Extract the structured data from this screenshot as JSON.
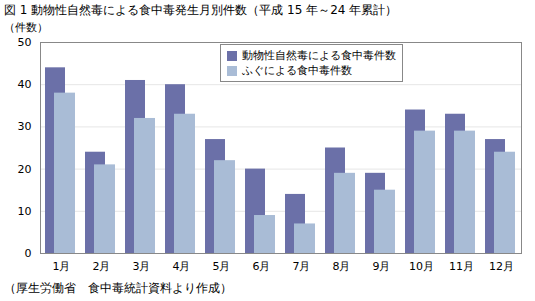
{
  "chart_data": {
    "type": "bar",
    "title": "図 1 動物性自然毒による食中毒発生月別件数（平成 15 年～24 年累計）",
    "caption": "（厚生労働省　食中毒統計資料より作成）",
    "y_label": "（件数）",
    "categories": [
      "1月",
      "2月",
      "3月",
      "4月",
      "5月",
      "6月",
      "7月",
      "8月",
      "9月",
      "10月",
      "11月",
      "12月"
    ],
    "series": [
      {
        "name": "動物性自然毒による食中毒件数",
        "color": "#6b70a8",
        "values": [
          44,
          24,
          41,
          40,
          27,
          20,
          14,
          25,
          19,
          34,
          33,
          27
        ]
      },
      {
        "name": "ふぐによる食中毒件数",
        "color": "#a9bcd6",
        "values": [
          38,
          21,
          32,
          33,
          22,
          9,
          7,
          19,
          15,
          29,
          29,
          24
        ]
      }
    ],
    "ylim": [
      0,
      50
    ],
    "yticks": [
      0,
      10,
      20,
      30,
      40,
      50
    ],
    "grid": true,
    "legend": "top"
  }
}
